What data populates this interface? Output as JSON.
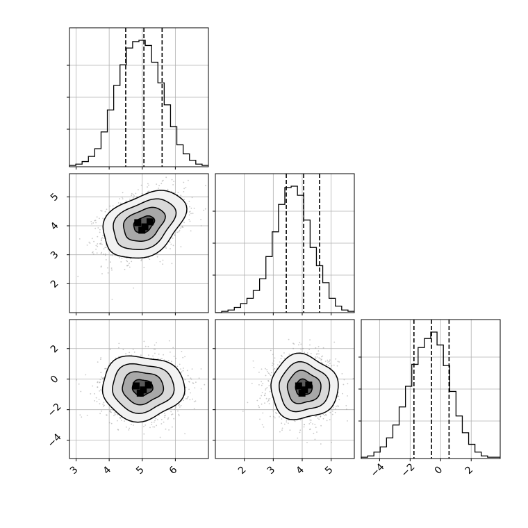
{
  "chart_data": {
    "type": "corner",
    "dimensions": [
      {
        "name": "",
        "range": [
          2.8,
          7.0
        ],
        "ticks": [
          3,
          4,
          5,
          6
        ],
        "quantiles": [
          4.5,
          5.05,
          5.6
        ]
      },
      {
        "name": "",
        "range": [
          1.0,
          5.8
        ],
        "ticks": [
          2,
          3,
          4,
          5
        ],
        "quantiles": [
          3.45,
          4.05,
          4.6
        ]
      },
      {
        "name": "",
        "range": [
          -5.2,
          3.9
        ],
        "ticks": [
          -4,
          -2,
          0,
          2
        ],
        "quantiles": [
          -1.75,
          -0.6,
          0.55
        ]
      }
    ],
    "y_axis_ticks": {
      "row_1": [
        2,
        3,
        4,
        5
      ],
      "row_2": [
        -4,
        -2,
        0,
        2
      ]
    },
    "histograms": [
      {
        "dim": 0,
        "counts": [
          1,
          2,
          4,
          8,
          14,
          27,
          44,
          63,
          79,
          92,
          97,
          98,
          94,
          81,
          65,
          48,
          31,
          17,
          10,
          5,
          2,
          1
        ]
      },
      {
        "dim": 1,
        "counts": [
          0,
          1,
          2,
          4,
          7,
          11,
          17,
          26,
          43,
          62,
          83,
          96,
          97,
          90,
          71,
          50,
          36,
          23,
          11,
          5,
          2,
          1
        ]
      },
      {
        "dim": 2,
        "counts": [
          1,
          2,
          5,
          9,
          16,
          26,
          40,
          56,
          73,
          86,
          93,
          98,
          88,
          72,
          52,
          33,
          20,
          11,
          5,
          2,
          1,
          1
        ]
      }
    ],
    "pairs": [
      {
        "x_dim": 0,
        "y_dim": 1,
        "mean": [
          5.05,
          4.05
        ],
        "sd": [
          0.62,
          0.58
        ],
        "corr": 0.35,
        "contour_levels": [
          0.5,
          1.0,
          1.5,
          2.0
        ]
      },
      {
        "x_dim": 0,
        "y_dim": 2,
        "mean": [
          5.0,
          -0.55
        ],
        "sd": [
          0.62,
          1.05
        ],
        "corr": 0.0,
        "contour_levels": [
          0.5,
          1.0,
          1.5,
          2.0
        ]
      },
      {
        "x_dim": 1,
        "y_dim": 2,
        "mean": [
          4.05,
          -0.55
        ],
        "sd": [
          0.58,
          1.05
        ],
        "corr": 0.0,
        "contour_levels": [
          0.5,
          1.0,
          1.5,
          2.0
        ]
      }
    ],
    "grid": true,
    "colors": {
      "line": "#000000",
      "grid": "#b0b0b0",
      "scatter": "#9a9a9a",
      "density": "#000000"
    }
  }
}
